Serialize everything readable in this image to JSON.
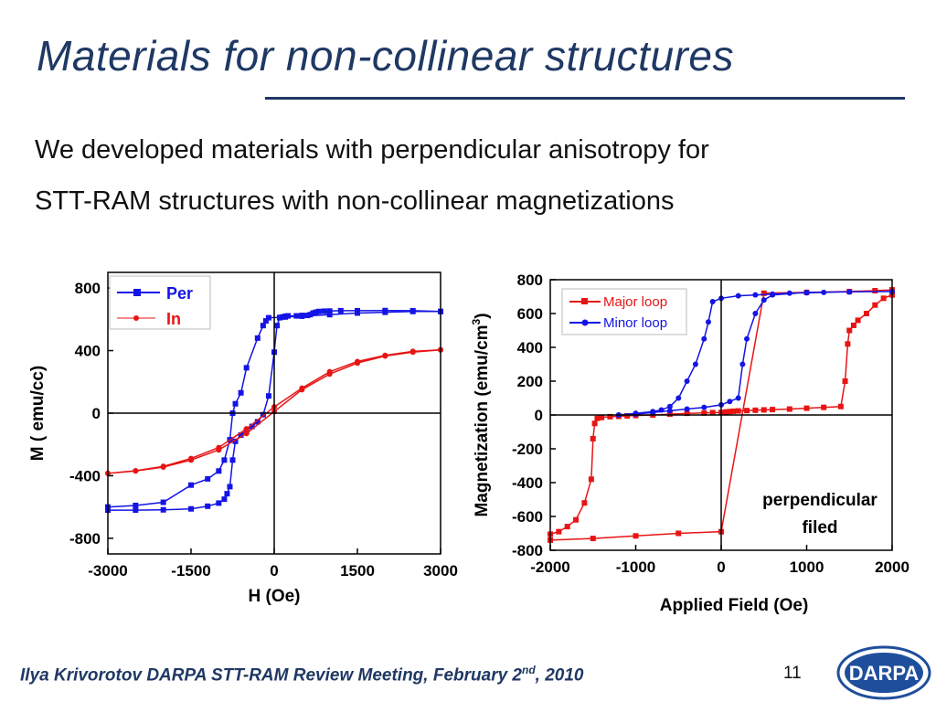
{
  "slide": {
    "title": "Materials for non-collinear structures",
    "body_line1": "We developed materials with perpendicular anisotropy for",
    "body_line2": "STT-RAM structures with non-collinear magnetizations",
    "footer_main": "Ilya Krivorotov  DARPA STT-RAM Review Meeting, February 2",
    "footer_sup": "nd",
    "footer_end": ", 2010",
    "page_number": "11",
    "logo_text": "DARPA"
  },
  "chart_data": [
    {
      "type": "line",
      "xlabel": "H (Oe)",
      "ylabel": "M ( emu/cc)",
      "xlim": [
        -3000,
        3000
      ],
      "ylim": [
        -900,
        900
      ],
      "xticks": [
        "-3000",
        "-1500",
        "0",
        "1500",
        "3000"
      ],
      "xtick_values": [
        -3000,
        -1500,
        0,
        1500,
        3000
      ],
      "yticks": [
        "800",
        "400",
        "0",
        "-400",
        "-800"
      ],
      "ytick_values": [
        800,
        400,
        0,
        -400,
        -800
      ],
      "legend_position": "top-left",
      "series": [
        {
          "name": "Per",
          "color": "#1414e6",
          "marker": "square",
          "x": [
            -3000,
            -2500,
            -2000,
            -1500,
            -1200,
            -1000,
            -900,
            -850,
            -800,
            -750,
            -700,
            -600,
            -500,
            -400,
            -300,
            -200,
            -100,
            0,
            50,
            100,
            150,
            200,
            250,
            400,
            500,
            600,
            650,
            700,
            750,
            800,
            900,
            1000,
            1200,
            1500,
            2000,
            2500,
            3000,
            3000,
            2500,
            2000,
            1500,
            1000,
            500,
            200,
            100,
            -100,
            -150,
            -200,
            -300,
            -500,
            -600,
            -700,
            -750,
            -800,
            -900,
            -1000,
            -1200,
            -1500,
            -2000,
            -2500,
            -3000
          ],
          "y": [
            -620,
            -620,
            -618,
            -612,
            -595,
            -575,
            -550,
            -515,
            -470,
            -300,
            -180,
            -140,
            -110,
            -85,
            -55,
            -10,
            110,
            390,
            560,
            610,
            615,
            620,
            622,
            622,
            625,
            625,
            630,
            640,
            645,
            650,
            652,
            653,
            655,
            655,
            656,
            655,
            650,
            650,
            650,
            645,
            640,
            630,
            620,
            615,
            612,
            610,
            590,
            560,
            480,
            290,
            130,
            60,
            0,
            -170,
            -300,
            -370,
            -420,
            -460,
            -570,
            -590,
            -600
          ]
        },
        {
          "name": "In",
          "color": "#e81414",
          "marker": "circle",
          "x": [
            -3000,
            -2500,
            -2000,
            -1500,
            -1000,
            -500,
            0,
            500,
            1000,
            1500,
            2000,
            2500,
            3000,
            3000,
            2500,
            2000,
            1500,
            1000,
            500,
            0,
            -500,
            -1000,
            -1500,
            -2000,
            -2500,
            -3000
          ],
          "y": [
            -385,
            -370,
            -345,
            -300,
            -235,
            -130,
            10,
            150,
            250,
            320,
            365,
            390,
            405,
            405,
            395,
            370,
            330,
            265,
            160,
            40,
            -100,
            -220,
            -290,
            -340,
            -368,
            -385
          ]
        }
      ]
    },
    {
      "type": "line",
      "xlabel": "Applied Field (Oe)",
      "ylabel": "Magnetization (emu/cm³)",
      "ylabel_main": "Magnetization (emu/cm",
      "ylabel_sup": "3",
      "ylabel_end": ")",
      "xlim": [
        -2000,
        2000
      ],
      "ylim": [
        -800,
        800
      ],
      "xticks": [
        "-2000",
        "-1000",
        "0",
        "1000",
        "2000"
      ],
      "xtick_values": [
        -2000,
        -1000,
        0,
        1000,
        2000
      ],
      "yticks": [
        "800",
        "600",
        "400",
        "200",
        "0",
        "-200",
        "-400",
        "-600",
        "-800"
      ],
      "ytick_values": [
        800,
        600,
        400,
        200,
        0,
        -200,
        -400,
        -600,
        -800
      ],
      "legend_position": "top-right",
      "annotation_line1": "perpendicular",
      "annotation_line2": "filed",
      "series": [
        {
          "name": "Major loop",
          "color": "#e81414",
          "marker": "square",
          "x": [
            -2000,
            -1900,
            -1800,
            -1700,
            -1600,
            -1520,
            -1500,
            -1480,
            -1450,
            -1400,
            -1300,
            -1200,
            -1100,
            -1000,
            -800,
            -600,
            -400,
            -200,
            -100,
            0,
            60,
            100,
            140,
            200,
            300,
            400,
            500,
            600,
            800,
            1000,
            1200,
            1400,
            1450,
            1480,
            1500,
            1550,
            1600,
            1700,
            1800,
            1900,
            2000,
            2000,
            1800,
            1500,
            1000,
            500,
            0,
            -500,
            -1000,
            -1500,
            -2000
          ],
          "y": [
            -705,
            -690,
            -660,
            -620,
            -520,
            -380,
            -140,
            -50,
            -20,
            -15,
            -10,
            -8,
            -5,
            -3,
            0,
            5,
            10,
            12,
            14,
            15,
            18,
            20,
            22,
            24,
            26,
            28,
            30,
            32,
            35,
            40,
            45,
            50,
            200,
            420,
            500,
            530,
            560,
            600,
            650,
            690,
            710,
            740,
            735,
            730,
            725,
            720,
            -690,
            -700,
            -715,
            -730,
            -740
          ]
        },
        {
          "name": "Minor loop",
          "color": "#1414e6",
          "marker": "circle",
          "x": [
            -1200,
            -1000,
            -800,
            -700,
            -600,
            -500,
            -400,
            -300,
            -200,
            -150,
            -100,
            0,
            200,
            400,
            600,
            800,
            1000,
            1200,
            1500,
            2000,
            2000,
            1500,
            1000,
            600,
            500,
            400,
            300,
            250,
            200,
            100,
            0,
            -200,
            -400,
            -600,
            -800,
            -1000,
            -1200
          ],
          "y": [
            0,
            10,
            20,
            30,
            50,
            100,
            200,
            300,
            450,
            550,
            670,
            690,
            705,
            710,
            715,
            720,
            722,
            725,
            728,
            730,
            730,
            728,
            725,
            710,
            680,
            600,
            450,
            300,
            100,
            80,
            60,
            45,
            35,
            25,
            15,
            5,
            0
          ]
        }
      ]
    }
  ]
}
